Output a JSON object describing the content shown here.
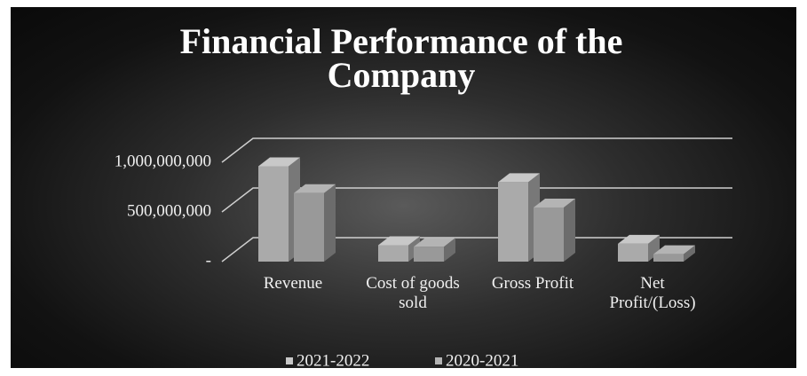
{
  "chart_data": {
    "type": "bar3d",
    "title": "Financial Performance of the Company",
    "categories": [
      "Revenue",
      "Cost of goods sold",
      "Gross Profit",
      "Net Profit/(Loss)"
    ],
    "series": [
      {
        "name": "2021-2022",
        "color": "#c8c8c8",
        "values": [
          960000000,
          165000000,
          800000000,
          180000000
        ]
      },
      {
        "name": "2020-2021",
        "color": "#b4b4b4",
        "values": [
          690000000,
          150000000,
          545000000,
          75000000
        ]
      }
    ],
    "ylim": [
      0,
      1000000000
    ],
    "yticks": [
      {
        "value": 0,
        "label": "-"
      },
      {
        "value": 500000000,
        "label": "500,000,000"
      },
      {
        "value": 1000000000,
        "label": "1,000,000,000"
      }
    ],
    "grid": true,
    "legend": "bottom"
  }
}
